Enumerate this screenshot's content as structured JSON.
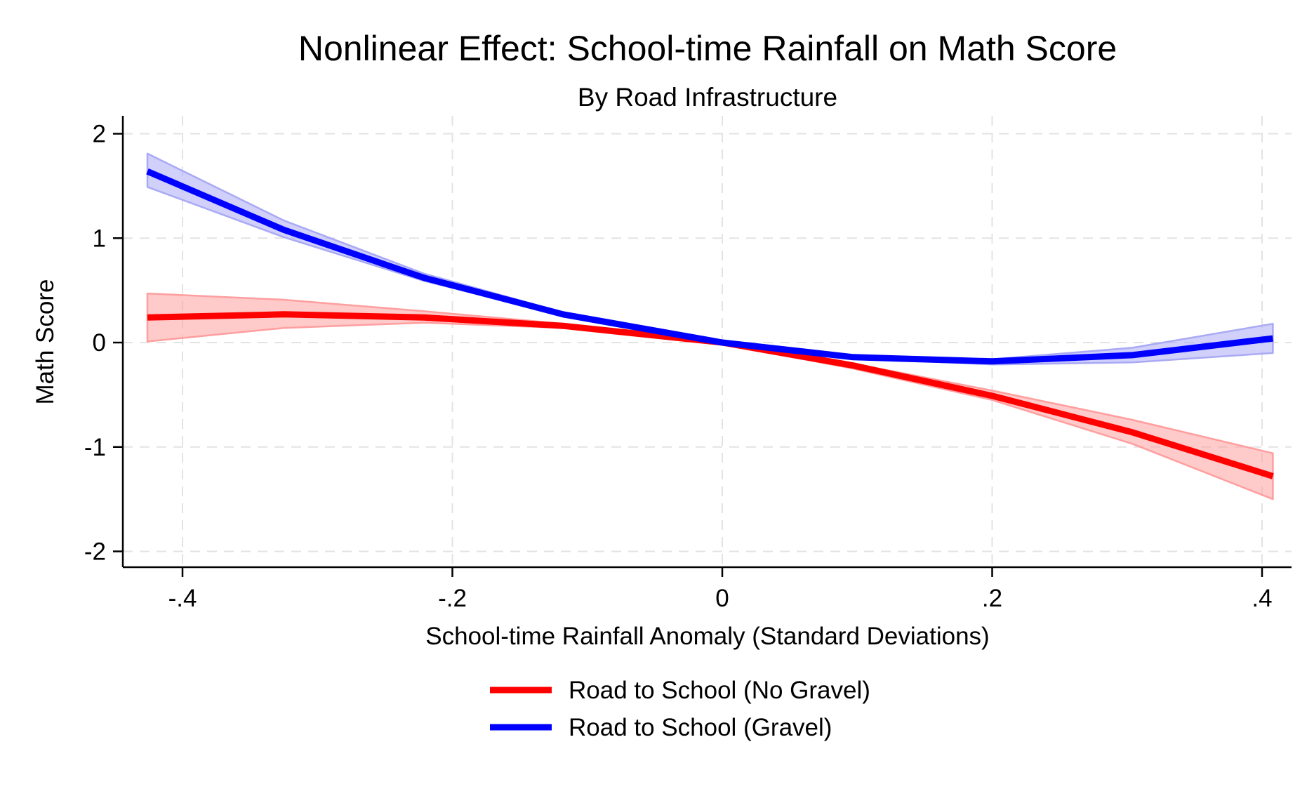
{
  "chart_data": {
    "type": "line",
    "title": "Nonlinear Effect: School-time Rainfall on Math Score",
    "subtitle": "By Road Infrastructure",
    "xlabel": "School-time Rainfall Anomaly (Standard Deviations)",
    "ylabel": "Math Score",
    "xlim": [
      -0.43,
      0.41
    ],
    "ylim": [
      -2.1,
      2.15
    ],
    "x_ticks": [
      -0.4,
      -0.2,
      0,
      0.2,
      0.4
    ],
    "x_tick_labels": [
      "-.4",
      "-.2",
      "0",
      ".2",
      ".4"
    ],
    "y_ticks": [
      2,
      1,
      0,
      -1,
      -2
    ],
    "y_tick_labels": [
      "2",
      "1",
      "0",
      "-1",
      "-2"
    ],
    "grid": true,
    "legend_position": "bottom",
    "series": [
      {
        "name": "Road to School (No Gravel)",
        "color": "#ff0000",
        "band_color": "#ff9e9e",
        "x": [
          -0.426,
          -0.325,
          -0.221,
          -0.118,
          0.0,
          0.097,
          0.2,
          0.304,
          0.408
        ],
        "y": [
          0.24,
          0.27,
          0.24,
          0.16,
          0.0,
          -0.22,
          -0.51,
          -0.86,
          -1.28
        ],
        "lower": [
          0.01,
          0.14,
          0.19,
          0.14,
          -0.01,
          -0.25,
          -0.55,
          -0.97,
          -1.5
        ],
        "upper": [
          0.47,
          0.41,
          0.3,
          0.18,
          0.01,
          -0.2,
          -0.46,
          -0.74,
          -1.06
        ]
      },
      {
        "name": "Road to School (Gravel)",
        "color": "#0000ff",
        "band_color": "#a9a9f5",
        "x": [
          -0.426,
          -0.325,
          -0.221,
          -0.118,
          0.0,
          0.097,
          0.2,
          0.304,
          0.408
        ],
        "y": [
          1.64,
          1.08,
          0.62,
          0.27,
          0.0,
          -0.14,
          -0.18,
          -0.12,
          0.04
        ],
        "lower": [
          1.49,
          1.01,
          0.59,
          0.26,
          -0.01,
          -0.15,
          -0.21,
          -0.19,
          -0.1
        ],
        "upper": [
          1.81,
          1.17,
          0.66,
          0.29,
          0.01,
          -0.12,
          -0.16,
          -0.05,
          0.18
        ]
      }
    ]
  }
}
